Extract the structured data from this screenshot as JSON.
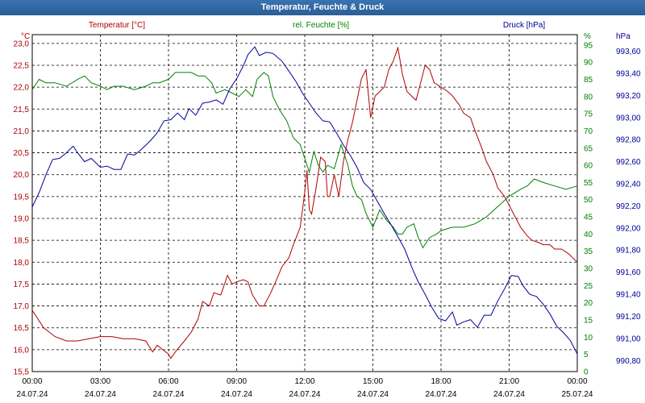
{
  "window": {
    "title": "Temperatur, Feuchte & Druck"
  },
  "colors": {
    "temperature": "#b00000",
    "humidity": "#008000",
    "pressure": "#000099",
    "grid": "#000000",
    "title_bar": "#2e64a0"
  },
  "chart_data": {
    "type": "line",
    "grid": true,
    "legend_placement": "top",
    "x_axis": {
      "range": [
        "24.07.24 00:00",
        "25.07.24 00:00"
      ],
      "tick_times": [
        "00:00",
        "03:00",
        "06:00",
        "09:00",
        "12:00",
        "15:00",
        "18:00",
        "21:00",
        "00:00"
      ],
      "tick_dates": [
        "24.07.24",
        "24.07.24",
        "24.07.24",
        "24.07.24",
        "24.07.24",
        "24.07.24",
        "24.07.24",
        "24.07.24",
        "25.07.24"
      ]
    },
    "axes": {
      "temperature": {
        "label": "Temperatur [°C]",
        "unit": "°C",
        "ylim": [
          15.5,
          23.2
        ],
        "side": "left",
        "ticks": [
          "23,0",
          "22,5",
          "22,0",
          "21,5",
          "21,0",
          "20,5",
          "20,0",
          "19,5",
          "19,0",
          "18,5",
          "18,0",
          "17,5",
          "17,0",
          "16,5",
          "16,0",
          "15,5"
        ]
      },
      "humidity": {
        "label": "rel. Feuchte [%]",
        "unit": "%",
        "ylim": [
          0,
          98
        ],
        "side": "right",
        "ticks": [
          "95",
          "90",
          "85",
          "80",
          "75",
          "70",
          "65",
          "60",
          "55",
          "50",
          "45",
          "40",
          "35",
          "30",
          "25",
          "20",
          "15",
          "10",
          "5",
          "0"
        ]
      },
      "pressure": {
        "label": "Druck [hPa]",
        "unit": "hPa",
        "ylim": [
          990.7,
          993.75
        ],
        "side": "right",
        "ticks": [
          "993,60",
          "993,40",
          "993,20",
          "993,00",
          "992,80",
          "992,60",
          "992,40",
          "992,20",
          "992,00",
          "991,80",
          "991,60",
          "991,40",
          "991,20",
          "991,00",
          "990,80"
        ]
      }
    },
    "series": [
      {
        "name": "Temperatur [°C]",
        "axis": "temperature",
        "points": [
          [
            0,
            16.9
          ],
          [
            0.5,
            16.5
          ],
          [
            1,
            16.3
          ],
          [
            1.5,
            16.2
          ],
          [
            2,
            16.2
          ],
          [
            2.5,
            16.25
          ],
          [
            3,
            16.3
          ],
          [
            3.5,
            16.3
          ],
          [
            4,
            16.25
          ],
          [
            4.5,
            16.25
          ],
          [
            5,
            16.2
          ],
          [
            5.3,
            15.95
          ],
          [
            5.5,
            16.1
          ],
          [
            6,
            15.9
          ],
          [
            6.1,
            15.8
          ],
          [
            6.3,
            15.95
          ],
          [
            6.7,
            16.2
          ],
          [
            7,
            16.4
          ],
          [
            7.3,
            16.7
          ],
          [
            7.5,
            17.1
          ],
          [
            7.8,
            17.0
          ],
          [
            8,
            17.3
          ],
          [
            8.3,
            17.25
          ],
          [
            8.6,
            17.7
          ],
          [
            8.8,
            17.5
          ],
          [
            9,
            17.55
          ],
          [
            9.3,
            17.6
          ],
          [
            9.5,
            17.55
          ],
          [
            9.7,
            17.25
          ],
          [
            10,
            17.0
          ],
          [
            10.2,
            17.0
          ],
          [
            10.5,
            17.3
          ],
          [
            10.8,
            17.65
          ],
          [
            11,
            17.9
          ],
          [
            11.3,
            18.1
          ],
          [
            11.5,
            18.4
          ],
          [
            11.8,
            18.8
          ],
          [
            12,
            19.6
          ],
          [
            12.1,
            20.1
          ],
          [
            12.2,
            19.2
          ],
          [
            12.3,
            19.1
          ],
          [
            12.5,
            19.7
          ],
          [
            12.7,
            20.4
          ],
          [
            12.9,
            20.3
          ],
          [
            13,
            19.5
          ],
          [
            13.1,
            19.5
          ],
          [
            13.3,
            20.0
          ],
          [
            13.5,
            19.5
          ],
          [
            13.7,
            20.3
          ],
          [
            13.9,
            20.8
          ],
          [
            14.1,
            21.2
          ],
          [
            14.3,
            21.7
          ],
          [
            14.5,
            22.2
          ],
          [
            14.7,
            22.4
          ],
          [
            14.9,
            21.3
          ],
          [
            15.1,
            21.8
          ],
          [
            15.3,
            21.9
          ],
          [
            15.5,
            22.0
          ],
          [
            15.7,
            22.4
          ],
          [
            15.9,
            22.6
          ],
          [
            16.1,
            22.9
          ],
          [
            16.3,
            22.3
          ],
          [
            16.5,
            21.9
          ],
          [
            16.7,
            21.8
          ],
          [
            16.9,
            21.7
          ],
          [
            17.1,
            22.1
          ],
          [
            17.3,
            22.5
          ],
          [
            17.5,
            22.4
          ],
          [
            17.7,
            22.1
          ],
          [
            18,
            22.0
          ],
          [
            18.3,
            21.9
          ],
          [
            18.5,
            21.8
          ],
          [
            18.8,
            21.6
          ],
          [
            19,
            21.4
          ],
          [
            19.3,
            21.3
          ],
          [
            19.5,
            21.0
          ],
          [
            19.8,
            20.6
          ],
          [
            20,
            20.3
          ],
          [
            20.3,
            20.0
          ],
          [
            20.5,
            19.7
          ],
          [
            20.8,
            19.5
          ],
          [
            21,
            19.3
          ],
          [
            21.3,
            19.0
          ],
          [
            21.5,
            18.8
          ],
          [
            21.8,
            18.6
          ],
          [
            22,
            18.5
          ],
          [
            22.3,
            18.45
          ],
          [
            22.5,
            18.4
          ],
          [
            22.8,
            18.4
          ],
          [
            23,
            18.3
          ],
          [
            23.3,
            18.3
          ],
          [
            23.6,
            18.2
          ],
          [
            24,
            18.0
          ]
        ]
      },
      {
        "name": "rel. Feuchte [%]",
        "axis": "humidity",
        "points": [
          [
            0,
            82
          ],
          [
            0.3,
            85
          ],
          [
            0.6,
            84
          ],
          [
            1,
            84
          ],
          [
            1.5,
            83
          ],
          [
            2,
            85
          ],
          [
            2.3,
            86
          ],
          [
            2.6,
            84
          ],
          [
            3,
            83
          ],
          [
            3.3,
            82
          ],
          [
            3.6,
            83
          ],
          [
            4,
            83
          ],
          [
            4.5,
            82
          ],
          [
            5,
            83
          ],
          [
            5.3,
            84
          ],
          [
            5.6,
            84
          ],
          [
            6,
            85
          ],
          [
            6.3,
            87
          ],
          [
            6.6,
            87
          ],
          [
            7,
            87
          ],
          [
            7.3,
            86
          ],
          [
            7.6,
            86
          ],
          [
            7.9,
            84
          ],
          [
            8.1,
            81
          ],
          [
            8.5,
            82
          ],
          [
            8.8,
            81
          ],
          [
            9.1,
            80
          ],
          [
            9.4,
            82
          ],
          [
            9.7,
            80
          ],
          [
            9.9,
            85
          ],
          [
            10.2,
            87
          ],
          [
            10.4,
            86
          ],
          [
            10.6,
            80
          ],
          [
            10.9,
            76
          ],
          [
            11.2,
            73
          ],
          [
            11.5,
            68
          ],
          [
            11.8,
            66
          ],
          [
            12,
            62
          ],
          [
            12.2,
            58
          ],
          [
            12.4,
            64
          ],
          [
            12.6,
            60
          ],
          [
            12.8,
            58
          ],
          [
            13,
            60
          ],
          [
            13.3,
            59
          ],
          [
            13.6,
            66
          ],
          [
            13.9,
            60
          ],
          [
            14.1,
            54
          ],
          [
            14.3,
            51
          ],
          [
            14.5,
            50
          ],
          [
            14.7,
            46
          ],
          [
            15,
            42
          ],
          [
            15.3,
            47
          ],
          [
            15.6,
            44
          ],
          [
            15.9,
            42
          ],
          [
            16.1,
            40
          ],
          [
            16.3,
            40
          ],
          [
            16.5,
            42
          ],
          [
            16.8,
            43
          ],
          [
            17,
            39
          ],
          [
            17.2,
            36
          ],
          [
            17.5,
            39
          ],
          [
            17.8,
            40
          ],
          [
            18,
            41
          ],
          [
            18.5,
            42
          ],
          [
            19,
            42
          ],
          [
            19.5,
            43
          ],
          [
            20,
            45
          ],
          [
            20.5,
            48
          ],
          [
            21,
            51
          ],
          [
            21.5,
            53
          ],
          [
            21.8,
            54
          ],
          [
            22.1,
            56
          ],
          [
            22.5,
            55
          ],
          [
            23,
            54
          ],
          [
            23.5,
            53
          ],
          [
            24,
            54
          ]
        ]
      },
      {
        "name": "Druck [hPa]",
        "axis": "pressure",
        "points": [
          [
            0,
            992.19
          ],
          [
            0.3,
            992.32
          ],
          [
            0.6,
            992.48
          ],
          [
            0.9,
            992.62
          ],
          [
            1.2,
            992.63
          ],
          [
            1.5,
            992.68
          ],
          [
            1.8,
            992.74
          ],
          [
            2,
            992.68
          ],
          [
            2.3,
            992.6
          ],
          [
            2.6,
            992.63
          ],
          [
            3,
            992.55
          ],
          [
            3.3,
            992.56
          ],
          [
            3.6,
            992.53
          ],
          [
            3.9,
            992.53
          ],
          [
            4.2,
            992.67
          ],
          [
            4.5,
            992.66
          ],
          [
            4.8,
            992.71
          ],
          [
            5.2,
            992.79
          ],
          [
            5.5,
            992.86
          ],
          [
            5.8,
            992.97
          ],
          [
            6.1,
            992.98
          ],
          [
            6.4,
            993.04
          ],
          [
            6.7,
            992.98
          ],
          [
            6.9,
            993.08
          ],
          [
            7.2,
            993.02
          ],
          [
            7.5,
            993.13
          ],
          [
            7.8,
            993.14
          ],
          [
            8.1,
            993.16
          ],
          [
            8.4,
            993.12
          ],
          [
            8.7,
            993.26
          ],
          [
            9,
            993.35
          ],
          [
            9.3,
            993.47
          ],
          [
            9.5,
            993.57
          ],
          [
            9.8,
            993.64
          ],
          [
            10,
            993.56
          ],
          [
            10.3,
            993.59
          ],
          [
            10.6,
            993.58
          ],
          [
            11,
            993.51
          ],
          [
            11.3,
            993.42
          ],
          [
            11.6,
            993.33
          ],
          [
            11.9,
            993.22
          ],
          [
            12.2,
            993.13
          ],
          [
            12.5,
            993.04
          ],
          [
            12.8,
            992.97
          ],
          [
            13.1,
            992.96
          ],
          [
            13.4,
            992.86
          ],
          [
            13.7,
            992.75
          ],
          [
            14,
            992.66
          ],
          [
            14.3,
            992.55
          ],
          [
            14.6,
            992.41
          ],
          [
            14.9,
            992.35
          ],
          [
            15.2,
            992.24
          ],
          [
            15.5,
            992.13
          ],
          [
            15.8,
            992.03
          ],
          [
            16.1,
            991.92
          ],
          [
            16.4,
            991.81
          ],
          [
            16.7,
            991.65
          ],
          [
            17,
            991.51
          ],
          [
            17.3,
            991.4
          ],
          [
            17.6,
            991.28
          ],
          [
            17.9,
            991.18
          ],
          [
            18.2,
            991.16
          ],
          [
            18.5,
            991.24
          ],
          [
            18.7,
            991.12
          ],
          [
            19,
            991.15
          ],
          [
            19.3,
            991.17
          ],
          [
            19.6,
            991.1
          ],
          [
            19.9,
            991.21
          ],
          [
            20.2,
            991.21
          ],
          [
            20.5,
            991.34
          ],
          [
            20.8,
            991.45
          ],
          [
            21.1,
            991.57
          ],
          [
            21.4,
            991.56
          ],
          [
            21.6,
            991.48
          ],
          [
            21.9,
            991.4
          ],
          [
            22.2,
            991.38
          ],
          [
            22.5,
            991.31
          ],
          [
            22.8,
            991.22
          ],
          [
            23.1,
            991.11
          ],
          [
            23.4,
            991.05
          ],
          [
            23.7,
            990.98
          ],
          [
            24,
            990.86
          ]
        ]
      }
    ]
  }
}
